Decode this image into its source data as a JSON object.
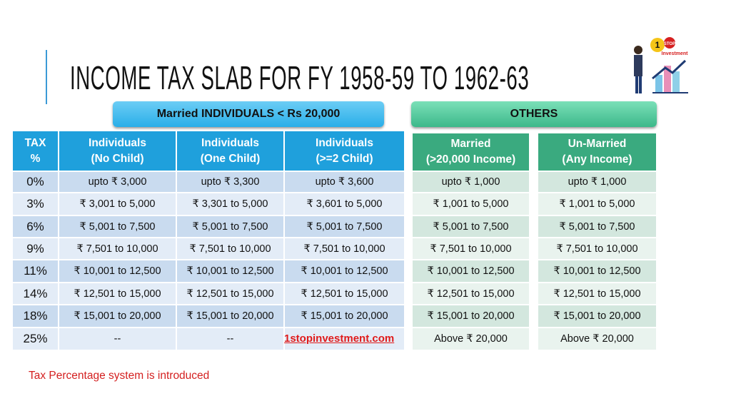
{
  "title": "INCOME TAX SLAB FOR FY 1958-59 TO 1962-63",
  "logo": {
    "number": "1",
    "sign": "STOP",
    "word": "Investment"
  },
  "left": {
    "banner": "Married INDIVIDUALS < Rs 20,000",
    "header": [
      [
        "TAX",
        "%"
      ],
      [
        "Individuals",
        "(No Child)"
      ],
      [
        "Individuals",
        "(One Child)"
      ],
      [
        "Individuals",
        "(>=2 Child)"
      ]
    ],
    "rows": [
      [
        "0%",
        "upto ₹ 3,000",
        "upto ₹ 3,300",
        "upto ₹ 3,600"
      ],
      [
        "3%",
        "₹ 3,001 to 5,000",
        "₹ 3,301 to 5,000",
        "₹ 3,601 to 5,000"
      ],
      [
        "6%",
        "₹ 5,001 to 7,500",
        "₹ 5,001 to 7,500",
        "₹ 5,001 to 7,500"
      ],
      [
        "9%",
        "₹ 7,501 to 10,000",
        "₹ 7,501 to 10,000",
        "₹ 7,501 to 10,000"
      ],
      [
        "11%",
        "₹ 10,001 to 12,500",
        "₹ 10,001 to 12,500",
        "₹ 10,001 to 12,500"
      ],
      [
        "14%",
        "₹ 12,501 to 15,000",
        "₹ 12,501 to 15,000",
        "₹ 12,501 to 15,000"
      ],
      [
        "18%",
        "₹ 15,001 to 20,000",
        "₹ 15,001 to 20,000",
        "₹ 15,001 to 20,000"
      ],
      [
        "25%",
        "--",
        "--"
      ]
    ]
  },
  "right": {
    "banner": "OTHERS",
    "tables": [
      {
        "header": [
          "Married",
          "(>20,000 Income)"
        ],
        "rows": [
          "upto ₹ 1,000",
          "₹ 1,001 to 5,000",
          "₹ 5,001 to 7,500",
          "₹ 7,501 to 10,000",
          "₹ 10,001 to 12,500",
          "₹ 12,501 to 15,000",
          "₹ 15,001 to 20,000",
          "Above ₹ 20,000"
        ]
      },
      {
        "header": [
          "Un-Married",
          "(Any Income)"
        ],
        "rows": [
          "upto ₹ 1,000",
          "₹ 1,001 to 5,000",
          "₹ 5,001 to 7,500",
          "₹ 7,501 to 10,000",
          "₹ 10,001 to 12,500",
          "₹ 12,501 to 15,000",
          "₹ 15,001 to 20,000",
          "Above ₹ 20,000"
        ]
      }
    ]
  },
  "watermark": "1stopinvestment.com",
  "note": "Tax Percentage system is introduced"
}
